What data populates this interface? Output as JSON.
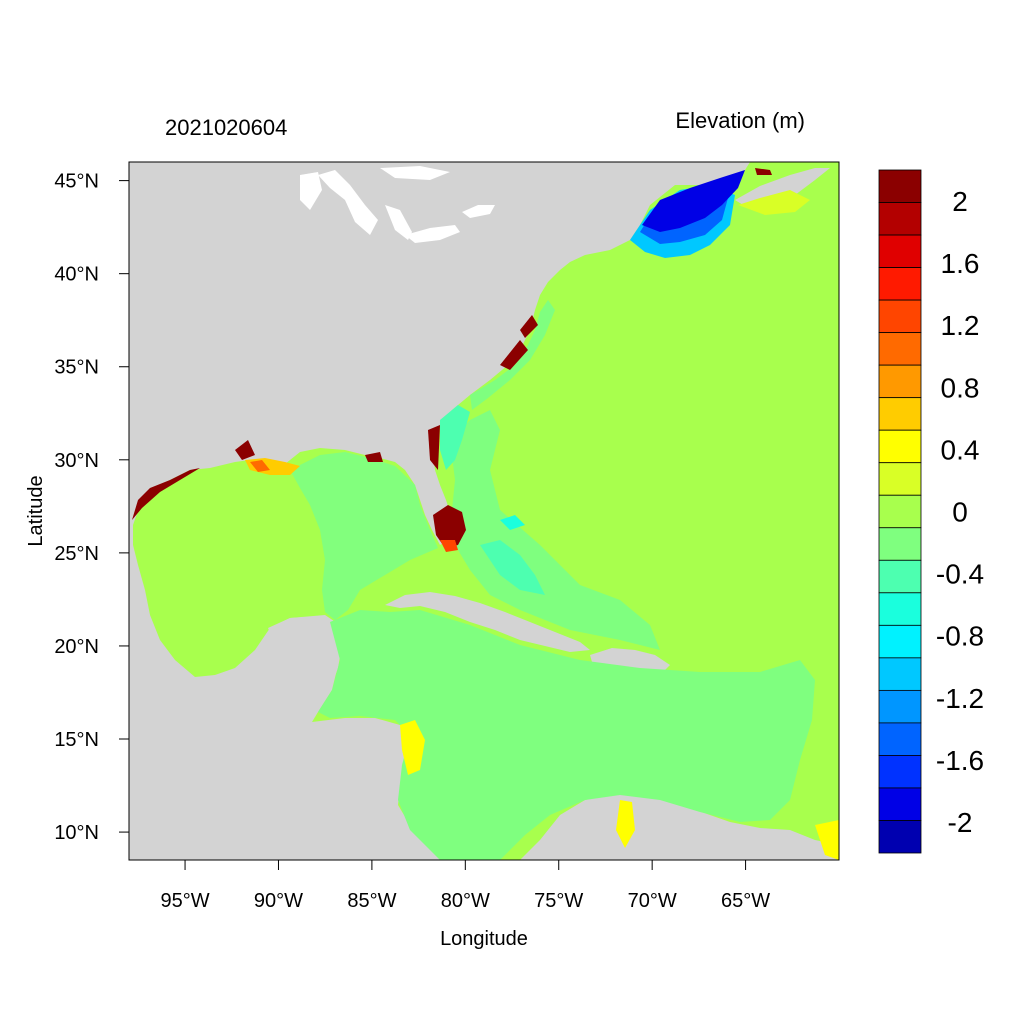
{
  "title_left": "2021020604",
  "title_right": "Elevation (m)",
  "x_axis_label": "Longitude",
  "y_axis_label": "Latitude",
  "map": {
    "lon_range": [
      -98,
      -60
    ],
    "lat_range": [
      8.5,
      46
    ],
    "land_color": "#d3d3d3",
    "inland_water_color": "#ffffff"
  },
  "x_ticks": [
    {
      "value": -95,
      "label": "95°W"
    },
    {
      "value": -90,
      "label": "90°W"
    },
    {
      "value": -85,
      "label": "85°W"
    },
    {
      "value": -80,
      "label": "80°W"
    },
    {
      "value": -75,
      "label": "75°W"
    },
    {
      "value": -70,
      "label": "70°W"
    },
    {
      "value": -65,
      "label": "65°W"
    }
  ],
  "y_ticks": [
    {
      "value": 45,
      "label": "45°N"
    },
    {
      "value": 40,
      "label": "40°N"
    },
    {
      "value": 35,
      "label": "35°N"
    },
    {
      "value": 30,
      "label": "30°N"
    },
    {
      "value": 25,
      "label": "25°N"
    },
    {
      "value": 20,
      "label": "20°N"
    },
    {
      "value": 15,
      "label": "15°N"
    },
    {
      "value": 10,
      "label": "10°N"
    }
  ],
  "colorbar": {
    "colors_top_to_bottom": [
      "#8b0000",
      "#b30000",
      "#e00000",
      "#ff1a00",
      "#ff4500",
      "#ff6a00",
      "#ff9900",
      "#ffcc00",
      "#ffff00",
      "#d9ff26",
      "#a8ff4d",
      "#7fff7f",
      "#4dffb0",
      "#1affdd",
      "#00f2ff",
      "#00c8ff",
      "#0096ff",
      "#0064ff",
      "#0032ff",
      "#0000e6",
      "#0000b0"
    ],
    "labels": [
      {
        "value": 2,
        "label": "2"
      },
      {
        "value": 1.6,
        "label": "1.6"
      },
      {
        "value": 1.2,
        "label": "1.2"
      },
      {
        "value": 0.8,
        "label": "0.8"
      },
      {
        "value": 0.4,
        "label": "0.4"
      },
      {
        "value": 0,
        "label": "0"
      },
      {
        "value": -0.4,
        "label": "-0.4"
      },
      {
        "value": -0.8,
        "label": "-0.8"
      },
      {
        "value": -1.2,
        "label": "-1.2"
      },
      {
        "value": -1.6,
        "label": "-1.6"
      },
      {
        "value": -2,
        "label": "-2"
      }
    ],
    "range": [
      -2.2,
      2.2
    ]
  }
}
